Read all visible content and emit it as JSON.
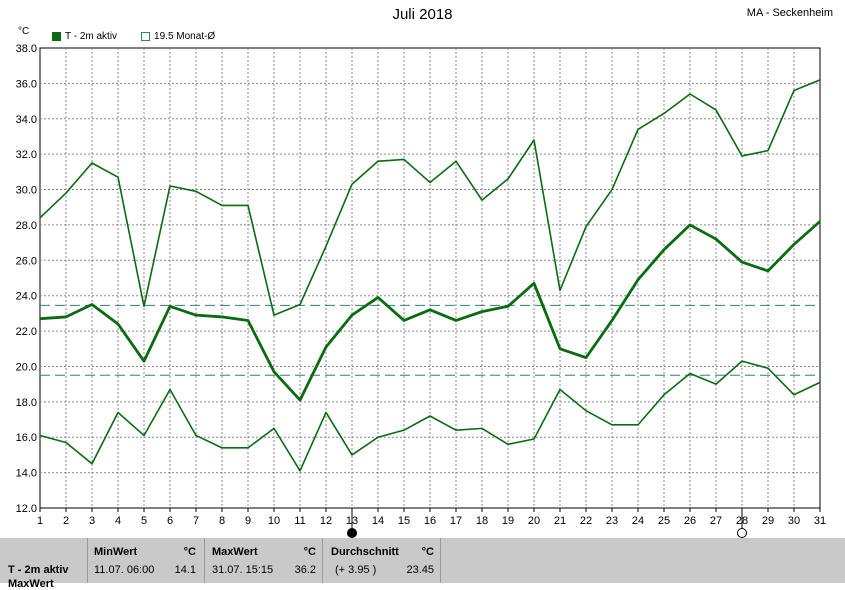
{
  "header": {
    "title": "Juli 2018",
    "station": "MA - Seckenheim",
    "unit": "°C"
  },
  "legend": {
    "series_label": "T - 2m aktiv",
    "mean_label": "19.5 Monat-Ø"
  },
  "colors": {
    "series": "#0a6b12",
    "ref_line": "#2e7f7a",
    "grid": "#8a8a8a",
    "table_bg": "#c9c9c9"
  },
  "moon_icons": [
    "full-moon-icon",
    "new-moon-icon"
  ],
  "chart_data": {
    "type": "line",
    "title": "Juli 2018",
    "xlabel": "",
    "ylabel": "°C",
    "xlim": [
      1,
      31
    ],
    "ylim": [
      12,
      38
    ],
    "yticks": [
      "12.0",
      "14.0",
      "16.0",
      "18.0",
      "20.0",
      "22.0",
      "24.0",
      "26.0",
      "28.0",
      "30.0",
      "32.0",
      "34.0",
      "36.0",
      "38.0"
    ],
    "xticks": [
      "1",
      "2",
      "3",
      "4",
      "5",
      "6",
      "7",
      "8",
      "9",
      "10",
      "11",
      "12",
      "13",
      "14",
      "15",
      "16",
      "17",
      "18",
      "19",
      "20",
      "21",
      "22",
      "23",
      "24",
      "25",
      "26",
      "27",
      "28",
      "29",
      "30",
      "31"
    ],
    "grid": true,
    "legend_position": "top-left",
    "x": [
      1,
      2,
      3,
      4,
      5,
      6,
      7,
      8,
      9,
      10,
      11,
      12,
      13,
      14,
      15,
      16,
      17,
      18,
      19,
      20,
      21,
      22,
      23,
      24,
      25,
      26,
      27,
      28,
      29,
      30,
      31
    ],
    "series": [
      {
        "name": "max",
        "values": [
          28.4,
          29.8,
          31.5,
          30.7,
          23.4,
          30.2,
          29.9,
          29.1,
          29.1,
          22.9,
          23.5,
          26.8,
          30.3,
          31.6,
          31.7,
          30.4,
          31.6,
          29.4,
          30.6,
          32.8,
          24.3,
          27.9,
          30.0,
          33.4,
          34.3,
          35.4,
          34.5,
          31.9,
          32.2,
          35.6,
          36.2
        ]
      },
      {
        "name": "mean",
        "values": [
          22.7,
          22.8,
          23.5,
          22.4,
          20.3,
          23.4,
          22.9,
          22.8,
          22.6,
          19.7,
          18.1,
          21.1,
          22.9,
          23.9,
          22.6,
          23.2,
          22.6,
          23.1,
          23.4,
          24.7,
          21.0,
          20.5,
          22.6,
          24.9,
          26.6,
          28.0,
          27.2,
          25.9,
          25.4,
          26.9,
          28.2
        ]
      },
      {
        "name": "min",
        "values": [
          16.1,
          15.7,
          14.5,
          17.4,
          16.1,
          18.7,
          16.1,
          15.4,
          15.4,
          16.5,
          14.1,
          17.4,
          15.0,
          16.0,
          16.4,
          17.2,
          16.4,
          16.5,
          15.6,
          15.9,
          18.7,
          17.5,
          16.7,
          16.7,
          18.4,
          19.6,
          19.0,
          20.3,
          19.9,
          18.4,
          19.1
        ]
      }
    ],
    "reference_lines": [
      {
        "name": "Monat-Ø",
        "value": 19.5
      },
      {
        "name": "Durchschnitt",
        "value": 23.45
      }
    ],
    "moon_markers": [
      {
        "day": 13,
        "phase": "full"
      },
      {
        "day": 28,
        "phase": "new"
      }
    ]
  },
  "stats": {
    "row_label": "T - 2m aktiv",
    "row_label_2": "MaxWert",
    "min": {
      "header": "MinWert",
      "unit": "°C",
      "time": "11.07.  06:00",
      "value": "14.1"
    },
    "max": {
      "header": "MaxWert",
      "unit": "°C",
      "time": "31.07.  15:15",
      "value": "36.2"
    },
    "avg": {
      "header": "Durchschnitt",
      "unit": "°C",
      "diff": "(+ 3.95 )",
      "value": "23.45"
    }
  }
}
